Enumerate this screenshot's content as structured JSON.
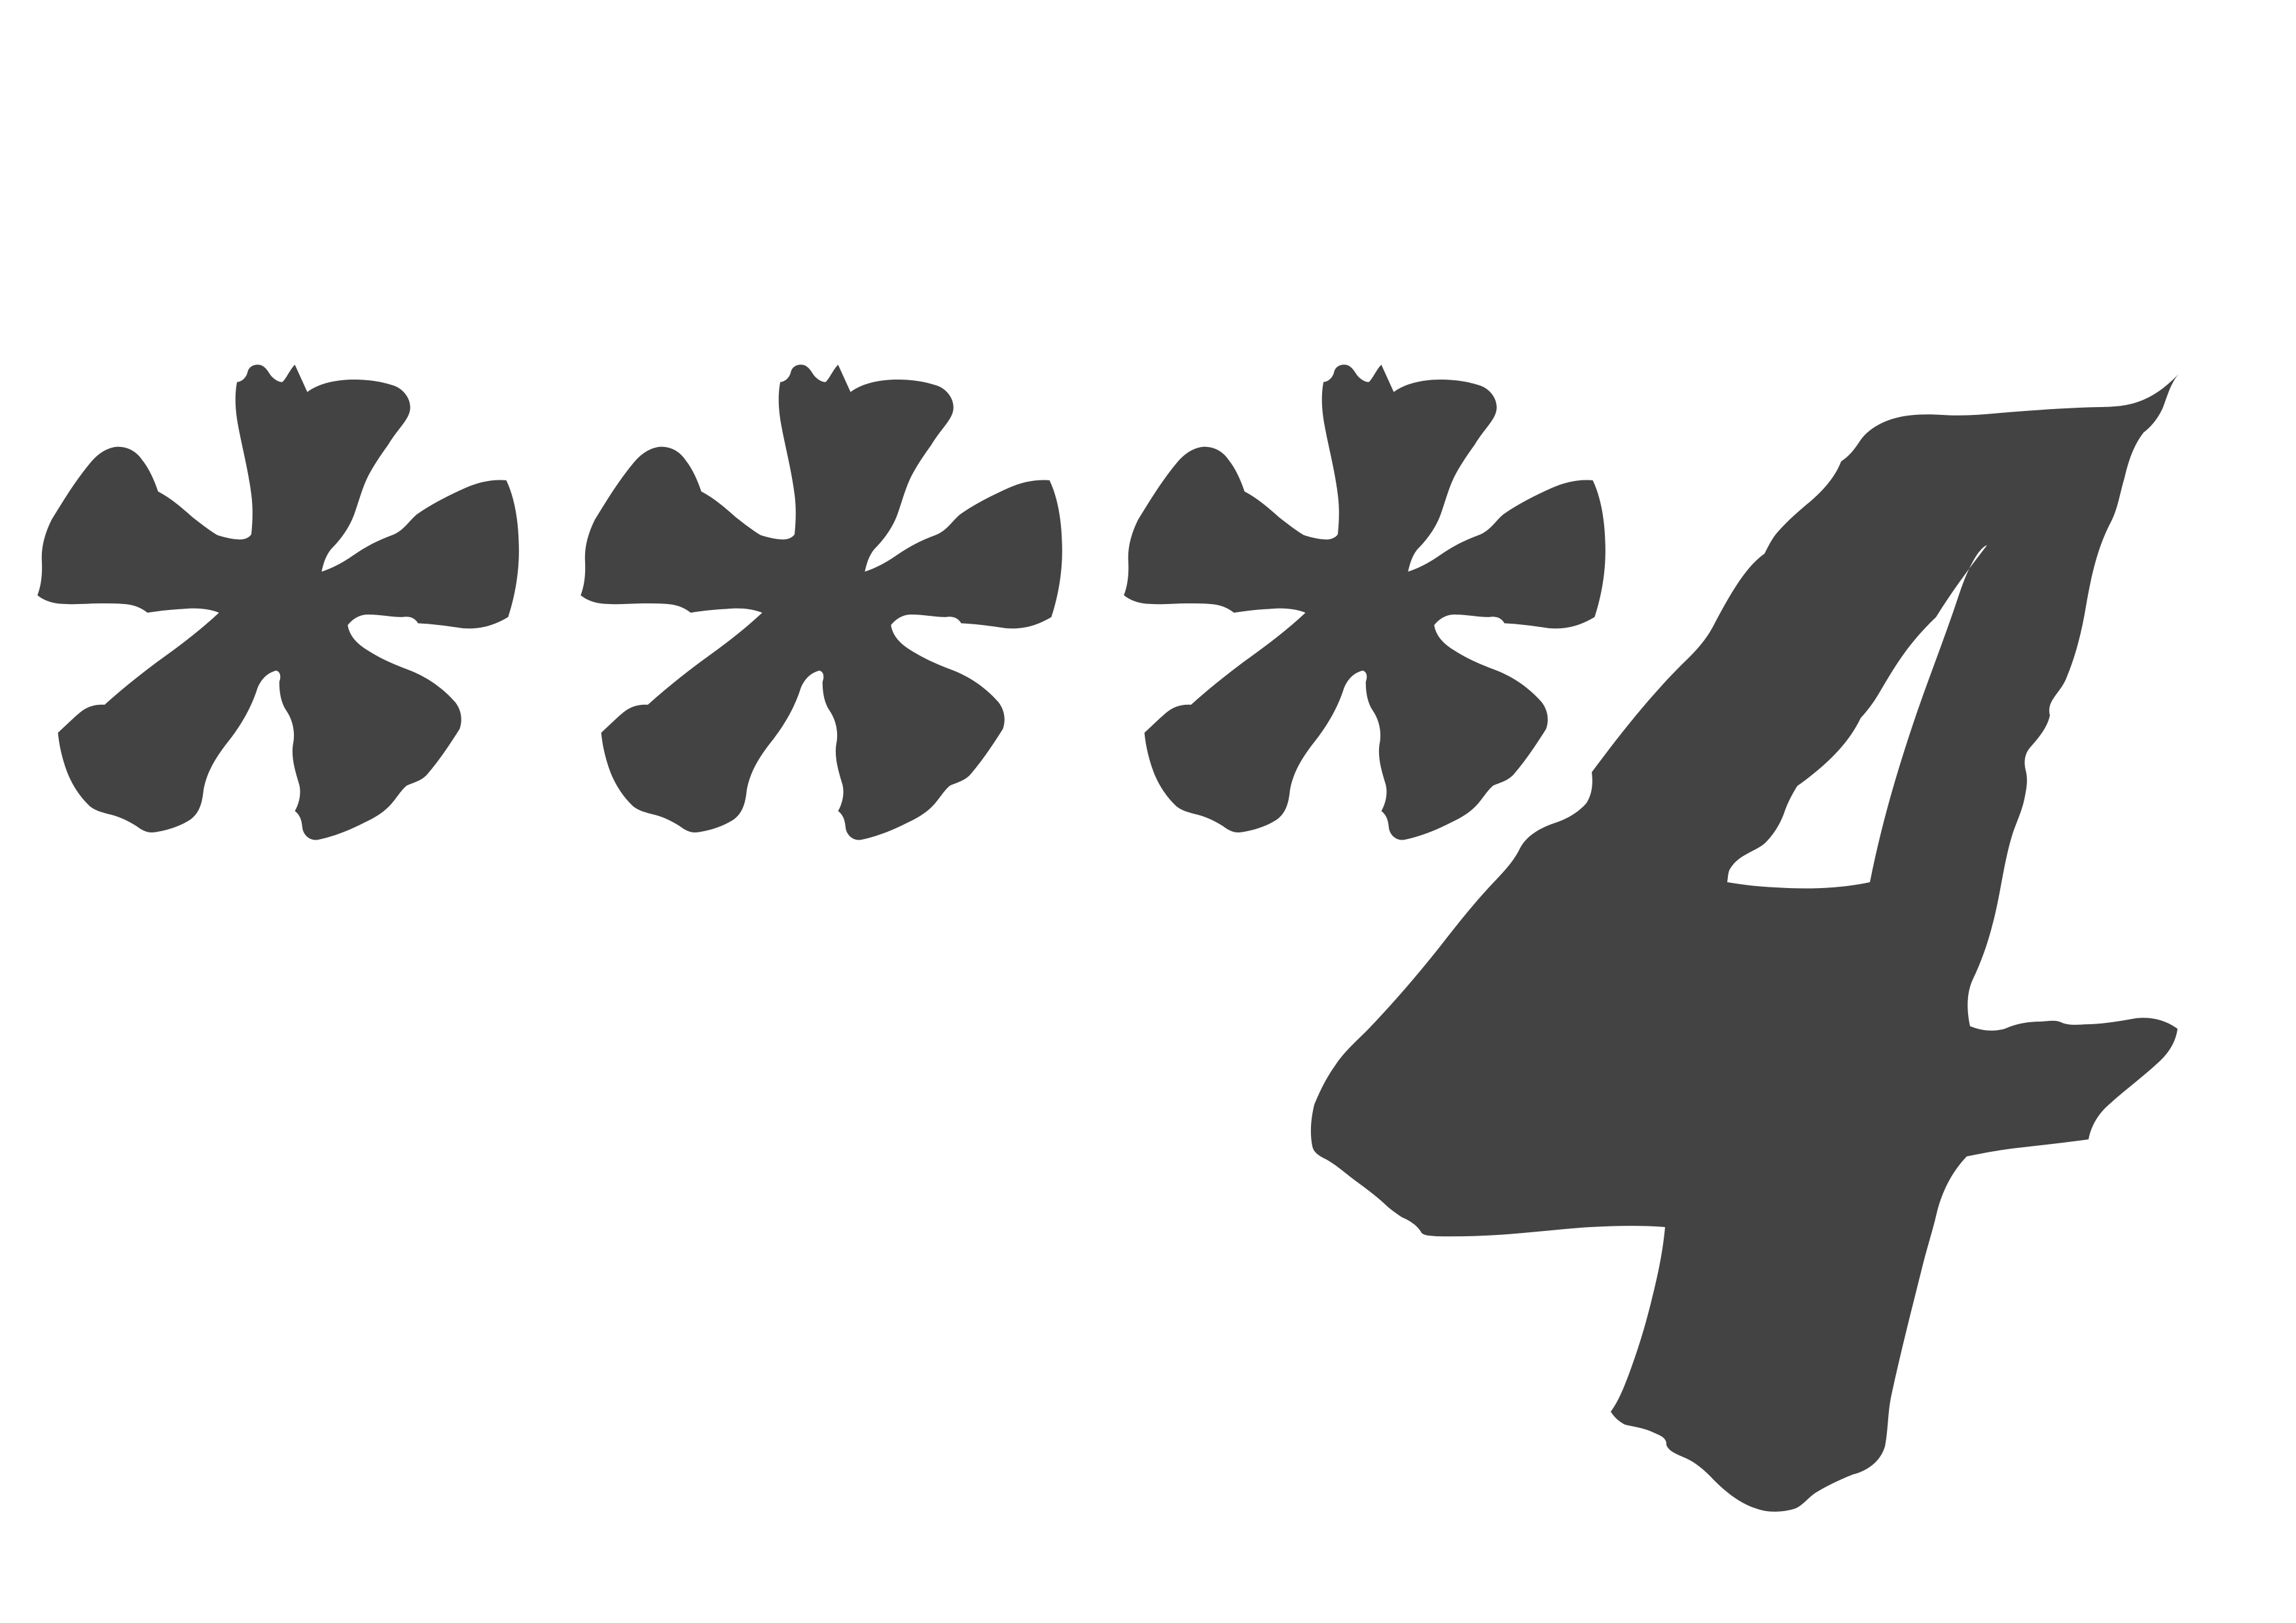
{
  "masked_text": {
    "text": "***4",
    "characters": [
      "*",
      "*",
      "*",
      "4"
    ],
    "glyph_color": "#434343",
    "background_color": "#ffffff"
  }
}
